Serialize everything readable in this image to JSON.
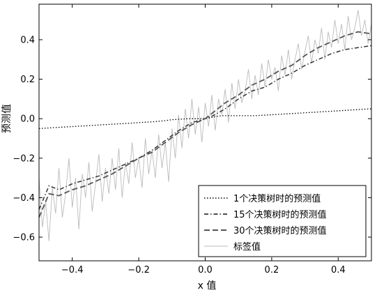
{
  "chart_data": {
    "type": "line",
    "xlabel": "x 值",
    "ylabel": "预测值",
    "xlim": [
      -0.5,
      0.5
    ],
    "ylim": [
      -0.72,
      0.58
    ],
    "xticks": [
      -0.4,
      -0.2,
      0.0,
      0.2,
      0.4
    ],
    "xtick_labels": [
      "−0.4",
      "−0.2",
      "0.0",
      "0.2",
      "0.4"
    ],
    "yticks": [
      -0.6,
      -0.4,
      -0.2,
      0.0,
      0.2,
      0.4
    ],
    "ytick_labels": [
      "−0.6",
      "−0.4",
      "−0.2",
      "0.0",
      "0.2",
      "0.4"
    ],
    "grid": false,
    "legend_position": "bottom-right",
    "series": [
      {
        "name": "1个决策树时的预测值",
        "style": "dotted",
        "color": "#000000",
        "x": [
          -0.5,
          -0.45,
          -0.4,
          -0.35,
          -0.3,
          -0.25,
          -0.2,
          -0.15,
          -0.12,
          -0.1,
          -0.05,
          0.0,
          0.03,
          0.05,
          0.1,
          0.15,
          0.2,
          0.25,
          0.3,
          0.35,
          0.4,
          0.45,
          0.5
        ],
        "y": [
          -0.05,
          -0.045,
          -0.04,
          -0.035,
          -0.03,
          -0.025,
          -0.02,
          -0.015,
          -0.01,
          -0.005,
          0.0,
          0.0,
          0.01,
          0.015,
          0.015,
          0.015,
          0.02,
          0.025,
          0.03,
          0.035,
          0.04,
          0.045,
          0.05
        ]
      },
      {
        "name": "15个决策树时的预测值",
        "style": "dashdot",
        "color": "#333333",
        "x": [
          -0.5,
          -0.47,
          -0.44,
          -0.4,
          -0.36,
          -0.32,
          -0.28,
          -0.24,
          -0.2,
          -0.16,
          -0.12,
          -0.08,
          -0.04,
          0.0,
          0.03,
          0.06,
          0.1,
          0.14,
          0.18,
          0.22,
          0.26,
          0.3,
          0.34,
          0.38,
          0.42,
          0.46,
          0.5
        ],
        "y": [
          -0.46,
          -0.34,
          -0.36,
          -0.33,
          -0.31,
          -0.29,
          -0.26,
          -0.23,
          -0.2,
          -0.16,
          -0.11,
          -0.06,
          -0.02,
          0.0,
          0.02,
          0.05,
          0.1,
          0.14,
          0.16,
          0.2,
          0.23,
          0.27,
          0.3,
          0.33,
          0.35,
          0.36,
          0.37
        ]
      },
      {
        "name": "30个决策树时的预测值",
        "style": "dashed",
        "color": "#555555",
        "x": [
          -0.5,
          -0.47,
          -0.44,
          -0.4,
          -0.36,
          -0.32,
          -0.28,
          -0.24,
          -0.2,
          -0.16,
          -0.12,
          -0.08,
          -0.04,
          0.0,
          0.03,
          0.06,
          0.1,
          0.14,
          0.18,
          0.22,
          0.26,
          0.3,
          0.34,
          0.38,
          0.42,
          0.46,
          0.5
        ],
        "y": [
          -0.5,
          -0.38,
          -0.39,
          -0.36,
          -0.34,
          -0.31,
          -0.28,
          -0.24,
          -0.2,
          -0.17,
          -0.12,
          -0.07,
          -0.03,
          0.0,
          0.04,
          0.08,
          0.12,
          0.17,
          0.2,
          0.24,
          0.27,
          0.32,
          0.36,
          0.39,
          0.42,
          0.44,
          0.43
        ]
      },
      {
        "name": "标签值",
        "style": "solid-thin",
        "color": "#bbbbbb",
        "x": [
          -0.5,
          -0.49,
          -0.48,
          -0.47,
          -0.46,
          -0.45,
          -0.44,
          -0.43,
          -0.42,
          -0.41,
          -0.4,
          -0.39,
          -0.38,
          -0.37,
          -0.36,
          -0.35,
          -0.34,
          -0.33,
          -0.32,
          -0.31,
          -0.3,
          -0.29,
          -0.28,
          -0.27,
          -0.26,
          -0.25,
          -0.24,
          -0.23,
          -0.22,
          -0.21,
          -0.2,
          -0.19,
          -0.18,
          -0.17,
          -0.16,
          -0.15,
          -0.14,
          -0.13,
          -0.12,
          -0.11,
          -0.1,
          -0.09,
          -0.08,
          -0.07,
          -0.06,
          -0.05,
          -0.04,
          -0.03,
          -0.02,
          -0.01,
          0.0,
          0.01,
          0.02,
          0.03,
          0.04,
          0.05,
          0.06,
          0.07,
          0.08,
          0.09,
          0.1,
          0.11,
          0.12,
          0.13,
          0.14,
          0.15,
          0.16,
          0.17,
          0.18,
          0.19,
          0.2,
          0.21,
          0.22,
          0.23,
          0.24,
          0.25,
          0.26,
          0.27,
          0.28,
          0.29,
          0.3,
          0.31,
          0.32,
          0.33,
          0.34,
          0.35,
          0.36,
          0.37,
          0.38,
          0.39,
          0.4,
          0.41,
          0.42,
          0.43,
          0.44,
          0.45,
          0.46,
          0.47,
          0.48,
          0.49,
          0.5
        ],
        "y": [
          -0.3,
          -0.55,
          -0.42,
          -0.62,
          -0.35,
          -0.48,
          -0.25,
          -0.5,
          -0.38,
          -0.2,
          -0.45,
          -0.3,
          -0.56,
          -0.28,
          -0.4,
          -0.22,
          -0.47,
          -0.33,
          -0.18,
          -0.42,
          -0.25,
          -0.38,
          -0.2,
          -0.36,
          -0.15,
          -0.4,
          -0.22,
          -0.33,
          -0.12,
          -0.3,
          -0.2,
          -0.35,
          -0.1,
          -0.28,
          -0.16,
          -0.3,
          -0.08,
          -0.25,
          -0.12,
          -0.32,
          -0.05,
          -0.2,
          0.02,
          -0.15,
          0.05,
          -0.1,
          0.1,
          -0.08,
          0.06,
          -0.12,
          0.08,
          -0.04,
          0.12,
          -0.06,
          0.1,
          0.02,
          0.15,
          -0.02,
          0.18,
          0.05,
          0.2,
          0.08,
          0.14,
          0.25,
          0.1,
          0.22,
          0.12,
          0.28,
          0.16,
          0.3,
          0.2,
          0.26,
          0.14,
          0.32,
          0.22,
          0.35,
          0.2,
          0.3,
          0.38,
          0.25,
          0.34,
          0.42,
          0.28,
          0.4,
          0.33,
          0.46,
          0.3,
          0.44,
          0.36,
          0.5,
          0.38,
          0.48,
          0.35,
          0.52,
          0.4,
          0.46,
          0.55,
          0.42,
          0.5,
          0.38,
          0.48
        ]
      }
    ]
  }
}
